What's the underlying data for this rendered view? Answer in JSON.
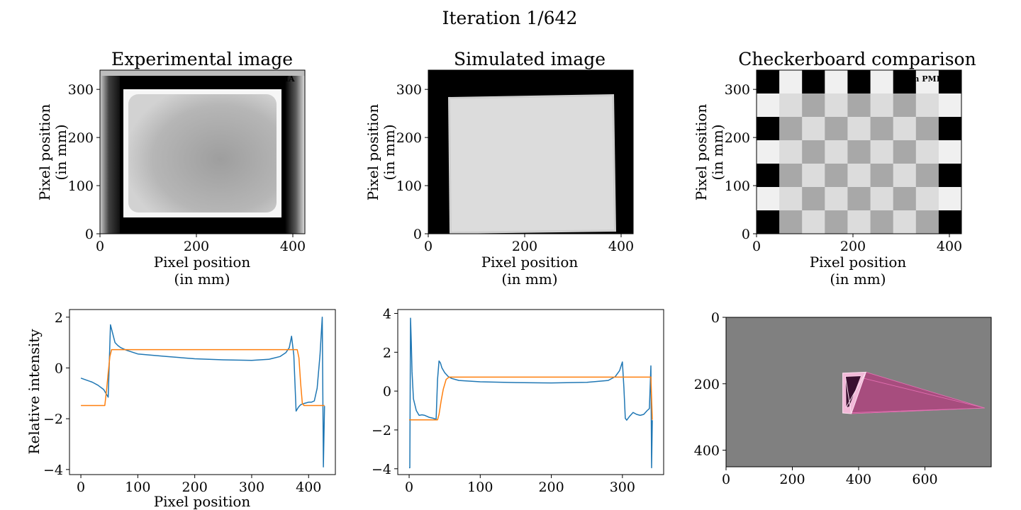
{
  "suptitle": "Iteration 1/642",
  "panels": {
    "experimental": {
      "title": "Experimental image",
      "xlabel": [
        "Pixel position",
        "(in mm)"
      ],
      "ylabel": [
        "Pixel position",
        "(in mm)"
      ],
      "watermark": "4cm PMMA"
    },
    "simulated": {
      "title": "Simulated image",
      "xlabel": [
        "Pixel position",
        "(in mm)"
      ],
      "ylabel": [
        "Pixel position",
        "(in mm)"
      ]
    },
    "checkerboard": {
      "title": "Checkerboard comparison",
      "xlabel": [
        "Pixel position",
        "(in mm)"
      ],
      "ylabel": [
        "Pixel position",
        "(in mm)"
      ],
      "watermark": "cm PMI"
    },
    "scene": {
      "xlabel": "",
      "ylabel": ""
    }
  },
  "chart_data": [
    {
      "id": "experimental",
      "type": "heatmap",
      "title": "Experimental image",
      "xlabel": "Pixel position (in mm)",
      "ylabel": "Pixel position (in mm)",
      "xlim": [
        0,
        425
      ],
      "ylim": [
        0,
        340
      ],
      "xticks": [
        0,
        200,
        400
      ],
      "yticks": [
        0,
        100,
        200,
        300
      ],
      "colormap": "gray",
      "bright_frame": {
        "x": [
          48,
          378
        ],
        "y": [
          37,
          301
        ]
      },
      "inner_region": {
        "x": [
          58,
          368
        ],
        "y": [
          46,
          290
        ]
      }
    },
    {
      "id": "simulated",
      "type": "heatmap",
      "title": "Simulated image",
      "xlabel": "Pixel position (in mm)",
      "ylabel": "Pixel position (in mm)",
      "xlim": [
        0,
        425
      ],
      "ylim": [
        0,
        340
      ],
      "xticks": [
        0,
        200,
        400
      ],
      "yticks": [
        0,
        100,
        200,
        300
      ],
      "colormap": "gray",
      "block": {
        "x": [
          42,
          392
        ],
        "y": [
          0,
          288
        ]
      }
    },
    {
      "id": "checkerboard",
      "type": "heatmap",
      "title": "Checkerboard comparison",
      "xlabel": "Pixel position (in mm)",
      "ylabel": "Pixel position (in mm)",
      "xlim": [
        0,
        425
      ],
      "ylim": [
        0,
        340
      ],
      "xticks": [
        0,
        200,
        400
      ],
      "yticks": [
        0,
        100,
        200,
        300
      ],
      "colormap": "gray",
      "grid": {
        "columns": 9,
        "rows": 7
      }
    },
    {
      "id": "profile-experimental",
      "type": "line",
      "xlabel": "Pixel position",
      "ylabel": "Relative intensity",
      "xlim": [
        -20,
        447
      ],
      "ylim": [
        -4.2,
        2.3
      ],
      "xticks": [
        0,
        100,
        200,
        300,
        400
      ],
      "yticks": [
        -4,
        -2,
        0,
        2
      ],
      "series": [
        {
          "color": "#1f77b4",
          "x": [
            0,
            10,
            20,
            30,
            40,
            44,
            48,
            52,
            56,
            60,
            65,
            70,
            80,
            100,
            150,
            200,
            250,
            300,
            330,
            350,
            360,
            366,
            370,
            374,
            378,
            382,
            386,
            392,
            400,
            405,
            410,
            415,
            420,
            424,
            426,
            428
          ],
          "y": [
            -0.4,
            -0.48,
            -0.56,
            -0.68,
            -0.85,
            -1.0,
            -1.15,
            1.7,
            1.35,
            1.0,
            0.88,
            0.8,
            0.7,
            0.55,
            0.45,
            0.36,
            0.32,
            0.3,
            0.34,
            0.45,
            0.6,
            0.8,
            1.25,
            0.5,
            -1.7,
            -1.55,
            -1.45,
            -1.4,
            -1.35,
            -1.35,
            -1.3,
            -0.8,
            0.5,
            2.0,
            -3.9,
            -1.5
          ]
        },
        {
          "color": "#ff7f0e",
          "x": [
            0,
            42,
            45,
            48,
            51,
            54,
            60,
            100,
            200,
            300,
            380,
            383,
            386,
            389,
            392,
            420,
            428
          ],
          "y": [
            -1.48,
            -1.48,
            -0.9,
            -0.2,
            0.45,
            0.72,
            0.72,
            0.72,
            0.72,
            0.72,
            0.72,
            0.4,
            -0.6,
            -1.4,
            -1.48,
            -1.48,
            -1.48
          ]
        }
      ]
    },
    {
      "id": "profile-simulated",
      "type": "line",
      "xlabel": "",
      "ylabel": "",
      "xlim": [
        -16,
        358
      ],
      "ylim": [
        -4.3,
        4.2
      ],
      "xticks": [
        0,
        100,
        200,
        300
      ],
      "yticks": [
        -4,
        -2,
        0,
        2,
        4
      ],
      "series": [
        {
          "color": "#1f77b4",
          "x": [
            0,
            1,
            2,
            3,
            4,
            6,
            10,
            14,
            18,
            22,
            28,
            34,
            38,
            40,
            42,
            44,
            46,
            50,
            55,
            60,
            70,
            100,
            150,
            200,
            250,
            280,
            290,
            296,
            300,
            302,
            304,
            306,
            310,
            315,
            320,
            325,
            330,
            335,
            338,
            340,
            341,
            342
          ],
          "y": [
            -3.95,
            -3.95,
            3.75,
            2.5,
            1.0,
            -0.4,
            -1.0,
            -1.25,
            -1.22,
            -1.25,
            -1.35,
            -1.4,
            -1.45,
            0.6,
            1.55,
            1.45,
            1.2,
            0.95,
            0.75,
            0.65,
            0.55,
            0.48,
            0.44,
            0.42,
            0.45,
            0.55,
            0.75,
            1.05,
            1.5,
            0.2,
            -1.4,
            -1.5,
            -1.3,
            -1.1,
            -1.2,
            -1.25,
            -1.2,
            -1.0,
            -0.9,
            1.3,
            -3.95,
            -1.5
          ]
        },
        {
          "color": "#ff7f0e",
          "x": [
            0,
            40,
            42,
            45,
            48,
            52,
            56,
            100,
            200,
            300,
            340,
            342
          ],
          "y": [
            -1.48,
            -1.48,
            -1.2,
            -0.5,
            0.1,
            0.6,
            0.72,
            0.72,
            0.72,
            0.72,
            0.72,
            -1.48
          ]
        }
      ]
    },
    {
      "id": "scene",
      "type": "scatter",
      "xlabel": "",
      "ylabel": "",
      "xlim": [
        0,
        800
      ],
      "ylim": [
        450,
        0
      ],
      "xticks": [
        0,
        200,
        400,
        600
      ],
      "yticks": [
        0,
        200,
        400
      ],
      "background": "#808080",
      "apex": [
        780,
        273
      ],
      "prism_front": [
        [
          352,
          168
        ],
        [
          422,
          165
        ],
        [
          378,
          290
        ],
        [
          352,
          288
        ]
      ],
      "prism_front_inner": [
        [
          360,
          178
        ],
        [
          408,
          176
        ],
        [
          372,
          270
        ],
        [
          362,
          272
        ]
      ]
    }
  ]
}
